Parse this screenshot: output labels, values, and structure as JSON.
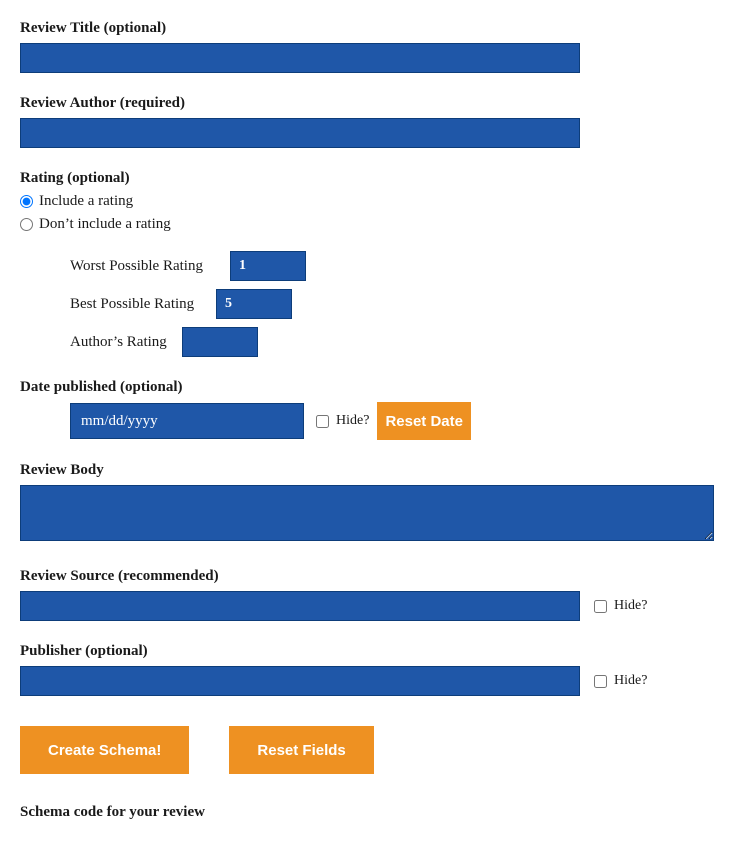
{
  "colors": {
    "input_bg": "#1f57a8",
    "input_border": "#0d3d7a",
    "button_bg": "#ee9122",
    "button_text": "#ffffff",
    "page_bg": "#ffffff",
    "text": "#1a1a1a"
  },
  "reviewTitle": {
    "label": "Review Title (optional)",
    "value": ""
  },
  "reviewAuthor": {
    "label": "Review Author (required)",
    "value": ""
  },
  "rating": {
    "label": "Rating (optional)",
    "options": {
      "include": "Include a rating",
      "exclude": "Don’t include a rating"
    },
    "selected": "include",
    "worst": {
      "label": "Worst Possible Rating",
      "value": "1"
    },
    "best": {
      "label": "Best Possible Rating",
      "value": "5"
    },
    "author": {
      "label": "Author’s Rating",
      "value": ""
    }
  },
  "datePublished": {
    "label": "Date published (optional)",
    "placeholder": "mm/dd/yyyy",
    "value": "",
    "hideLabel": "Hide?",
    "resetButton": "Reset Date"
  },
  "reviewBody": {
    "label": "Review Body",
    "value": ""
  },
  "reviewSource": {
    "label": "Review Source (recommended)",
    "value": "",
    "hideLabel": "Hide?"
  },
  "publisher": {
    "label": "Publisher (optional)",
    "value": "",
    "hideLabel": "Hide?"
  },
  "buttons": {
    "create": "Create Schema!",
    "reset": "Reset Fields"
  },
  "schemaHeading": "Schema code for your review"
}
